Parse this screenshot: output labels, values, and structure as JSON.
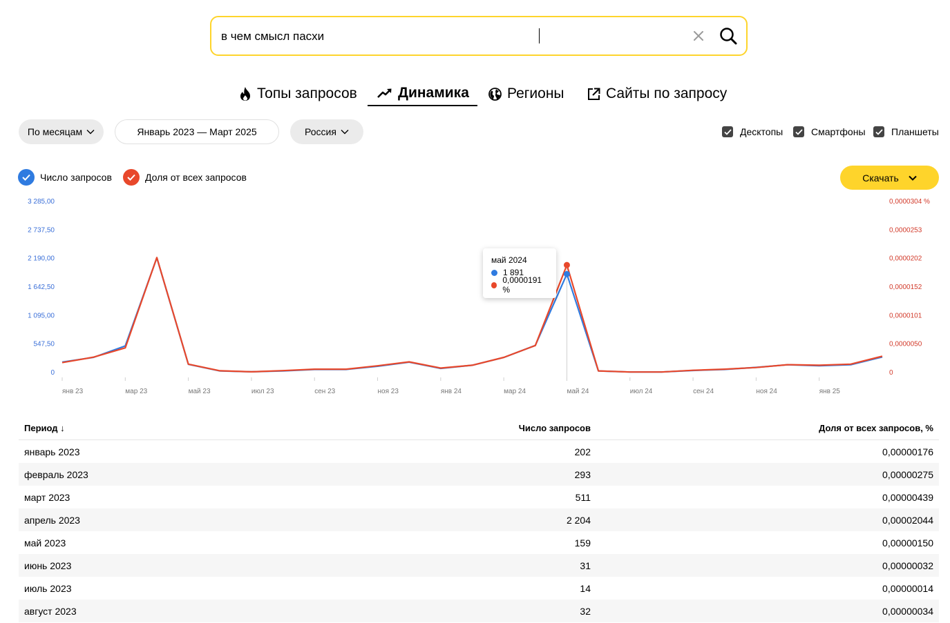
{
  "search": {
    "value": "в чем смысл пасхи",
    "placeholder": ""
  },
  "tabs": [
    {
      "label": "Топы запросов",
      "icon": "flame-icon"
    },
    {
      "label": "Динамика",
      "icon": "trend-icon",
      "active": true
    },
    {
      "label": "Регионы",
      "icon": "globe-icon"
    },
    {
      "label": "Сайты по запросу",
      "icon": "external-link-icon"
    }
  ],
  "filters": {
    "period_group": "По месяцам",
    "date_range": "Январь 2023 — Март 2025",
    "region": "Россия"
  },
  "devices": [
    {
      "label": "Десктопы",
      "checked": true
    },
    {
      "label": "Смартфоны",
      "checked": true
    },
    {
      "label": "Планшеты",
      "checked": true
    }
  ],
  "legend": {
    "count_label": "Число запросов",
    "share_label": "Доля от всех запросов"
  },
  "download_label": "Скачать",
  "colors": {
    "accent": "#fed42b",
    "count": "#2f7be0",
    "share": "#e8482b"
  },
  "chart_data": {
    "type": "line",
    "x": [
      "янв 23",
      "фев 23",
      "мар 23",
      "апр 23",
      "май 23",
      "июн 23",
      "июл 23",
      "авг 23",
      "сен 23",
      "окт 23",
      "ноя 23",
      "дек 23",
      "янв 24",
      "фев 24",
      "мар 24",
      "апр 24",
      "май 24",
      "июн 24",
      "июл 24",
      "авг 24",
      "сен 24",
      "окт 24",
      "ноя 24",
      "дек 24",
      "янв 25",
      "фев 25",
      "мар 25"
    ],
    "x_tick_labels": [
      "янв 23",
      "мар 23",
      "май 23",
      "июл 23",
      "сен 23",
      "ноя 23",
      "янв 24",
      "мар 24",
      "май 24",
      "июл 24",
      "сен 24",
      "ноя 24",
      "янв 25"
    ],
    "series": [
      {
        "name": "Число запросов",
        "axis": "left",
        "color": "#2f7be0",
        "values": [
          202,
          293,
          511,
          2204,
          159,
          31,
          14,
          32,
          60,
          60,
          120,
          200,
          80,
          140,
          290,
          520,
          1891,
          30,
          10,
          10,
          40,
          60,
          100,
          150,
          130,
          150,
          300
        ]
      },
      {
        "name": "Доля от всех запросов",
        "axis": "right",
        "color": "#e8482b",
        "values": [
          1.76e-06,
          2.75e-06,
          4.39e-06,
          2.044e-05,
          1.5e-06,
          3.2e-07,
          1.4e-07,
          3.4e-07,
          6e-07,
          6e-07,
          1.2e-06,
          1.9e-06,
          8e-07,
          1.3e-06,
          2.7e-06,
          4.8e-06,
          1.91e-05,
          3e-07,
          1e-07,
          1e-07,
          4e-07,
          6e-07,
          9e-07,
          1.4e-06,
          1.3e-06,
          1.5e-06,
          2.9e-06
        ]
      }
    ],
    "y_left_ticks": [
      "0",
      "547,50",
      "1 095,00",
      "1 642,50",
      "2 190,00",
      "2 737,50",
      "3 285,00"
    ],
    "y_right_ticks": [
      "0",
      "0,0000050",
      "0,0000101",
      "0,0000152",
      "0,0000202",
      "0,0000253",
      "0,0000304 %"
    ],
    "ylim_left": [
      0,
      3285
    ],
    "ylim_right": [
      0,
      3.04e-05
    ],
    "tooltip": {
      "title": "май 2024",
      "count": "1 891",
      "share": "0,0000191 %",
      "index": 16
    }
  },
  "table": {
    "headers": {
      "period": "Период",
      "count": "Число запросов",
      "share": "Доля от всех запросов, %"
    },
    "rows": [
      {
        "period": "январь 2023",
        "count": "202",
        "share": "0,00000176"
      },
      {
        "period": "февраль 2023",
        "count": "293",
        "share": "0,00000275"
      },
      {
        "period": "март 2023",
        "count": "511",
        "share": "0,00000439"
      },
      {
        "period": "апрель 2023",
        "count": "2 204",
        "share": "0,00002044"
      },
      {
        "period": "май 2023",
        "count": "159",
        "share": "0,00000150"
      },
      {
        "period": "июнь 2023",
        "count": "31",
        "share": "0,00000032"
      },
      {
        "period": "июль 2023",
        "count": "14",
        "share": "0,00000014"
      },
      {
        "period": "август 2023",
        "count": "32",
        "share": "0,00000034"
      }
    ]
  }
}
